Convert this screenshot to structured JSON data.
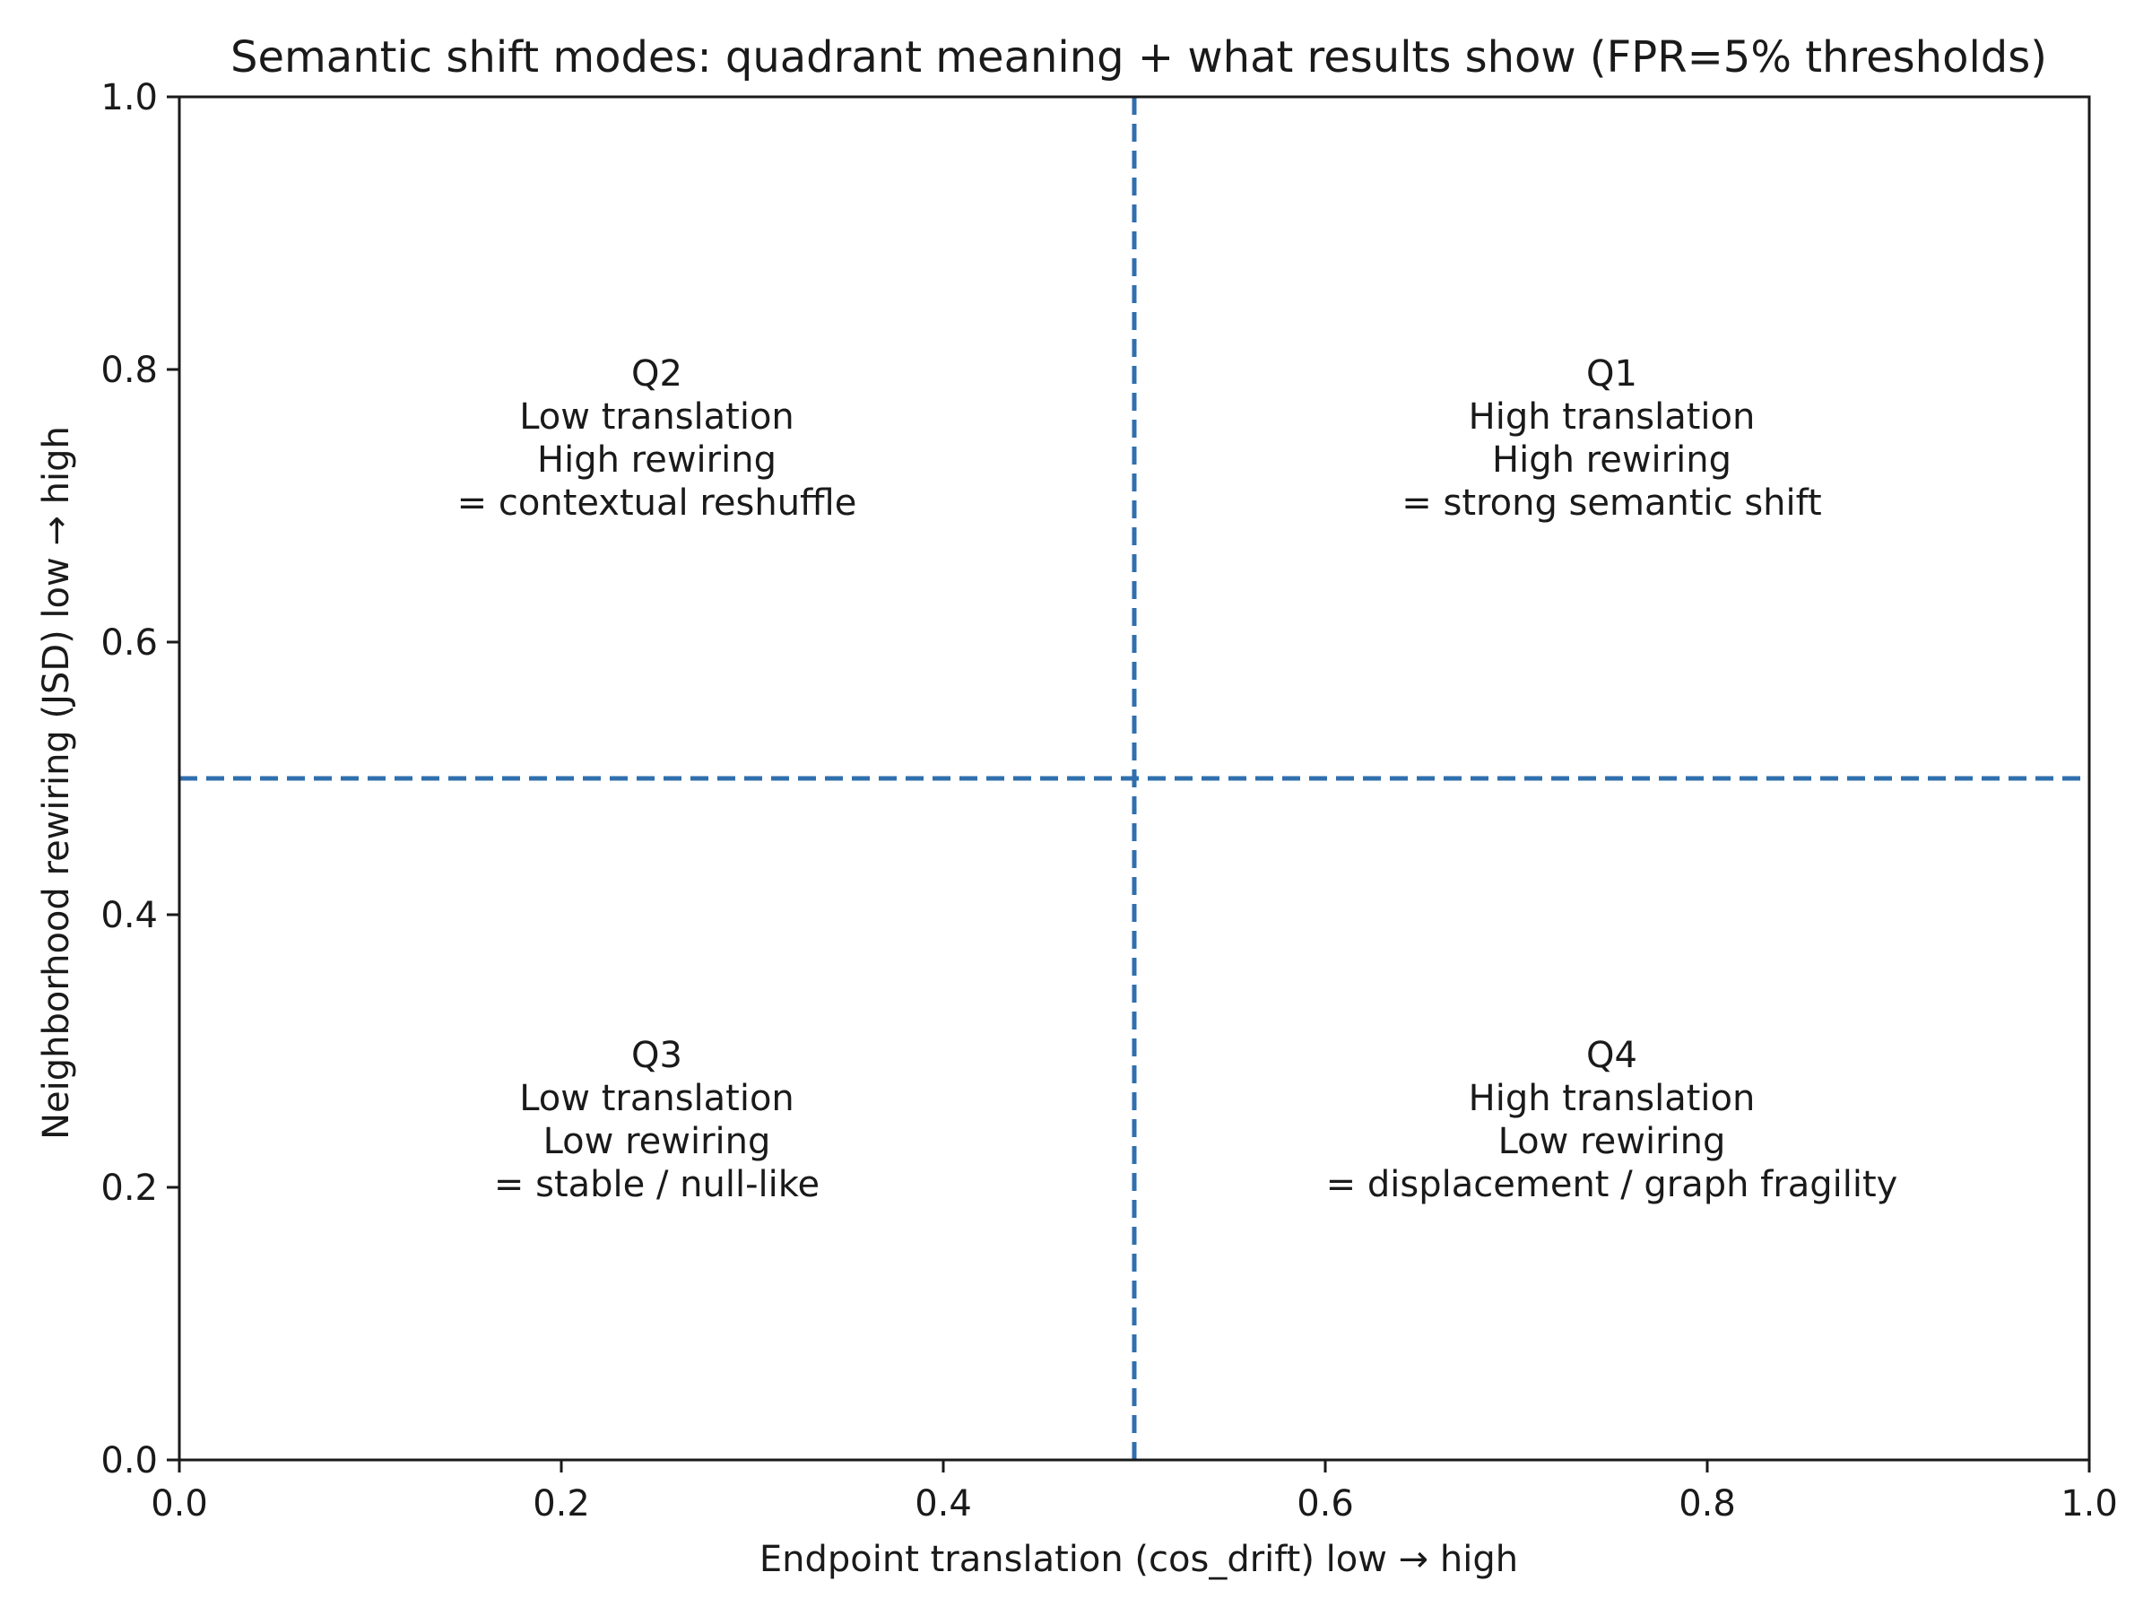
{
  "chart_data": {
    "type": "scatter",
    "title": "Semantic shift modes: quadrant meaning + what results show (FPR=5% thresholds)",
    "xlabel": "Endpoint translation (cos_drift)  low  →  high",
    "ylabel": "Neighborhood rewiring (JSD)  low  →  high",
    "xlim": [
      0,
      1
    ],
    "ylim": [
      0,
      1
    ],
    "xticks": [
      0.0,
      0.2,
      0.4,
      0.6,
      0.8,
      1.0
    ],
    "yticks": [
      0.0,
      0.2,
      0.4,
      0.6,
      0.8,
      1.0
    ],
    "xtick_labels": [
      "0.0",
      "0.2",
      "0.4",
      "0.6",
      "0.8",
      "1.0"
    ],
    "ytick_labels": [
      "0.0",
      "0.2",
      "0.4",
      "0.6",
      "0.8",
      "1.0"
    ],
    "grid": false,
    "threshold_lines": [
      {
        "orientation": "vertical",
        "value": 0.5,
        "style": "dashed",
        "color": "#2f6fad"
      },
      {
        "orientation": "horizontal",
        "value": 0.5,
        "style": "dashed",
        "color": "#2f6fad"
      }
    ],
    "annotations": [
      {
        "id": "q2",
        "x": 0.25,
        "y": 0.75,
        "lines": [
          "Q2",
          "Low translation",
          "High rewiring",
          "= contextual reshuffle"
        ]
      },
      {
        "id": "q1",
        "x": 0.75,
        "y": 0.75,
        "lines": [
          "Q1",
          "High translation",
          "High rewiring",
          "= strong semantic shift"
        ]
      },
      {
        "id": "q3",
        "x": 0.25,
        "y": 0.25,
        "lines": [
          "Q3",
          "Low translation",
          "Low rewiring",
          "= stable / null-like"
        ]
      },
      {
        "id": "q4",
        "x": 0.75,
        "y": 0.25,
        "lines": [
          "Q4",
          "High translation",
          "Low rewiring",
          "= displacement / graph fragility"
        ]
      }
    ]
  }
}
